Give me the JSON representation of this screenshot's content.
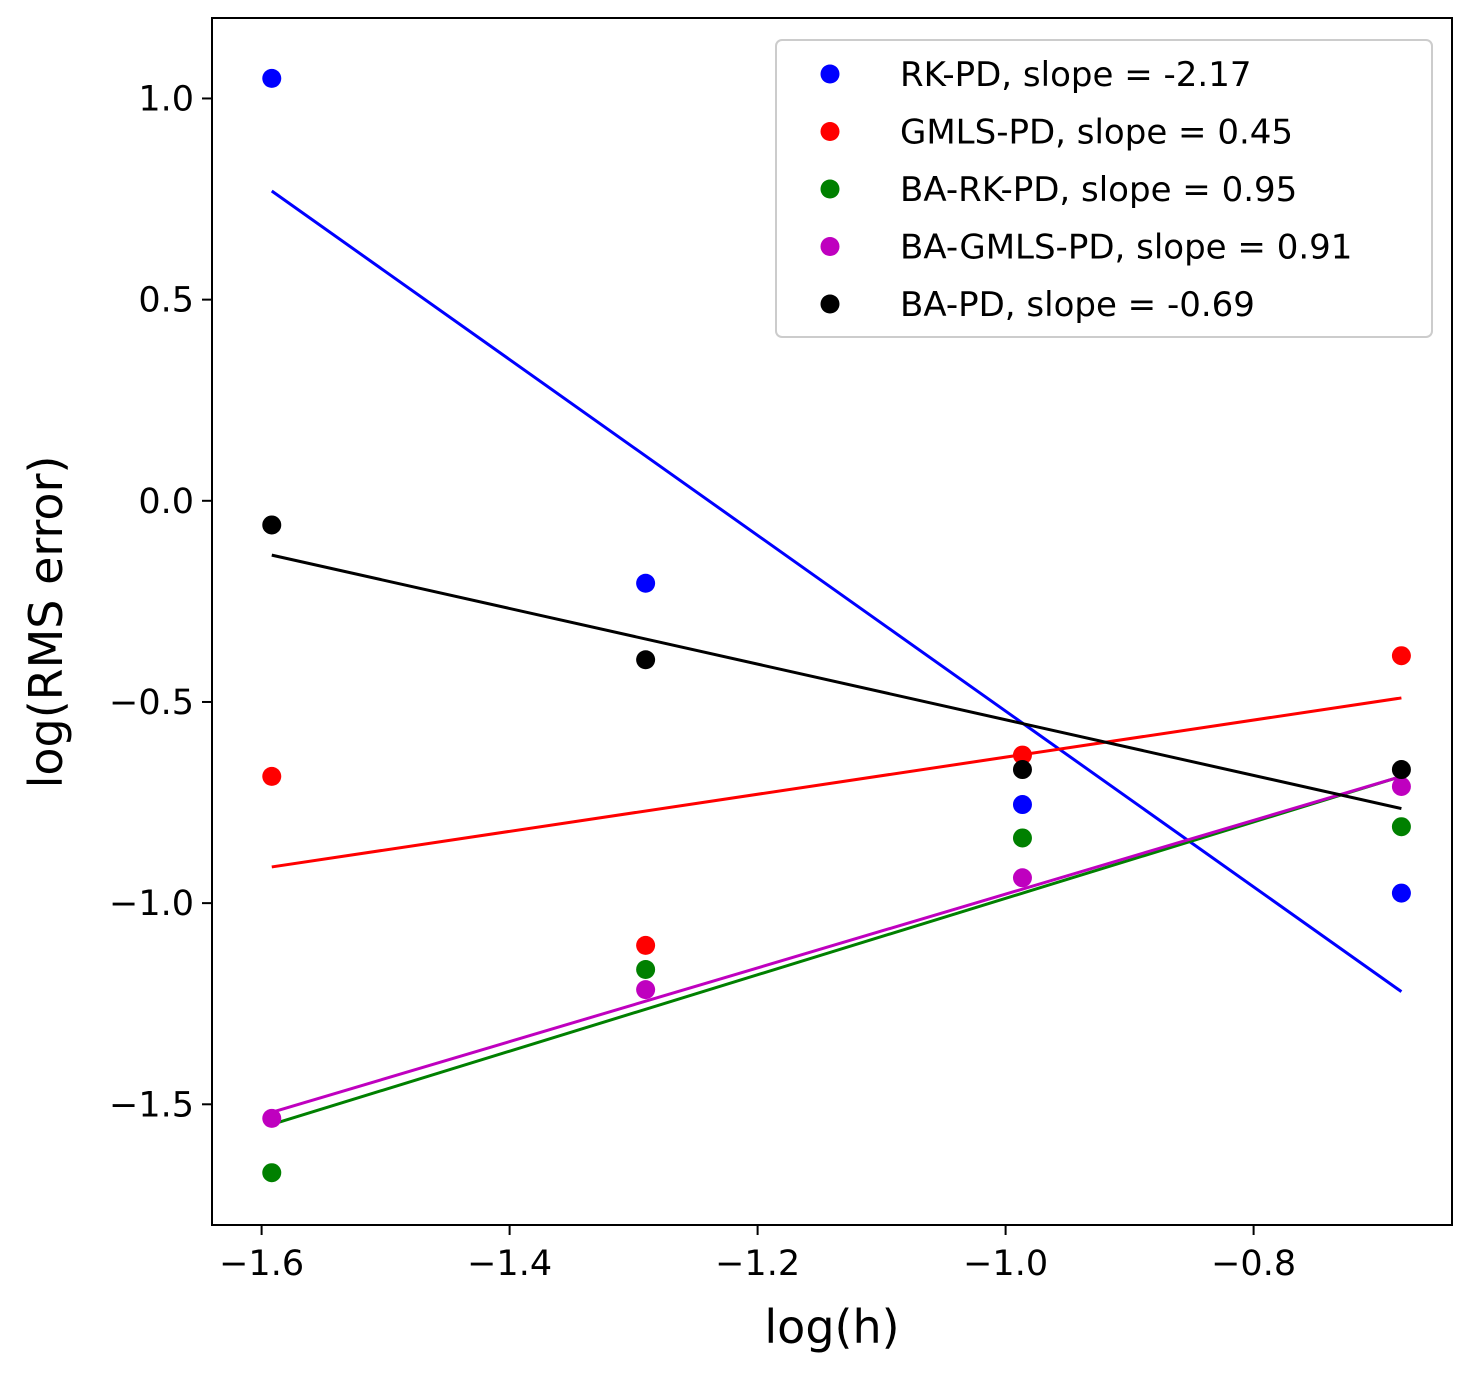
{
  "chart_data": {
    "type": "scatter",
    "title": "",
    "xlabel": "log(h)",
    "ylabel": "log(RMS error)",
    "xlim": [
      -1.64,
      -0.64
    ],
    "ylim": [
      -1.8,
      1.2
    ],
    "xticks": [
      -1.6,
      -1.4,
      -1.2,
      -1.0,
      -0.8
    ],
    "xtick_labels": [
      "−1.6",
      "−1.4",
      "−1.2",
      "−1.0",
      "−0.8"
    ],
    "yticks": [
      1.0,
      0.5,
      0.0,
      -0.5,
      -1.0,
      -1.5
    ],
    "ytick_labels": [
      "1.0",
      "0.5",
      "0.0",
      "−0.5",
      "−1.0",
      "−1.5"
    ],
    "legend_position": "top-right",
    "x": [
      -1.5918,
      -1.2903,
      -0.9864,
      -0.6808
    ],
    "series": [
      {
        "name": "RK-PD, slope = -2.17",
        "color": "#0000ff",
        "y": [
          1.05,
          -0.205,
          -0.755,
          -0.975
        ],
        "fit": [
          [
            -1.5918,
            0.77
          ],
          [
            -0.6808,
            -1.22
          ]
        ]
      },
      {
        "name": "GMLS-PD, slope = 0.45",
        "color": "#ff0000",
        "y": [
          -0.685,
          -1.105,
          -0.632,
          -0.385
        ],
        "fit": [
          [
            -1.5918,
            -0.91
          ],
          [
            -0.6808,
            -0.49
          ]
        ]
      },
      {
        "name": "BA-RK-PD, slope = 0.95",
        "color": "#008000",
        "y": [
          -1.67,
          -1.165,
          -0.838,
          -0.81
        ],
        "fit": [
          [
            -1.5918,
            -1.55
          ],
          [
            -0.6808,
            -0.685
          ]
        ]
      },
      {
        "name": "BA-GMLS-PD, slope = 0.91",
        "color": "#bf00bf",
        "y": [
          -1.535,
          -1.215,
          -0.937,
          -0.71
        ],
        "fit": [
          [
            -1.5918,
            -1.52
          ],
          [
            -0.6808,
            -0.685
          ]
        ]
      },
      {
        "name": "BA-PD, slope = -0.69",
        "color": "#000000",
        "y": [
          -0.06,
          -0.395,
          -0.668,
          -0.668
        ],
        "fit": [
          [
            -1.5918,
            -0.135
          ],
          [
            -0.6808,
            -0.765
          ]
        ]
      }
    ]
  }
}
